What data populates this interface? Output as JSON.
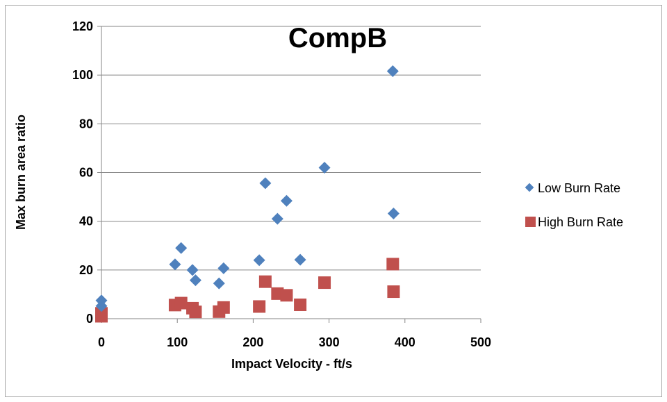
{
  "chart_data": {
    "type": "scatter",
    "title": "CompB",
    "xlabel": "Impact Velocity - ft/s",
    "ylabel": "Max burn area ratio",
    "xlim": [
      0,
      500
    ],
    "ylim": [
      0,
      120
    ],
    "xticks": [
      "0",
      "100",
      "200",
      "300",
      "400",
      "500"
    ],
    "yticks": [
      "0",
      "20",
      "40",
      "60",
      "80",
      "100",
      "120"
    ],
    "grid": true,
    "legend_position": "right",
    "series": [
      {
        "name": "Low Burn Rate",
        "color": "#4f81bd",
        "marker": "diamond",
        "points": [
          [
            0,
            7.5
          ],
          [
            0,
            5.2
          ],
          [
            97,
            22.3
          ],
          [
            105,
            29
          ],
          [
            120,
            20
          ],
          [
            124,
            15.8
          ],
          [
            155,
            14.5
          ],
          [
            161,
            20.7
          ],
          [
            208,
            24
          ],
          [
            216,
            55.6
          ],
          [
            232,
            41
          ],
          [
            244,
            48.4
          ],
          [
            262,
            24.2
          ],
          [
            294,
            62
          ],
          [
            384,
            101.6
          ],
          [
            385,
            43.2
          ]
        ]
      },
      {
        "name": "High Burn Rate",
        "color": "#c0504d",
        "marker": "square",
        "points": [
          [
            0,
            2.2
          ],
          [
            0,
            1.0
          ],
          [
            97,
            5.6
          ],
          [
            105,
            6.4
          ],
          [
            120,
            4.3
          ],
          [
            124,
            2.8
          ],
          [
            155,
            2.9
          ],
          [
            161,
            4.6
          ],
          [
            208,
            5.0
          ],
          [
            216,
            15.2
          ],
          [
            232,
            10.3
          ],
          [
            244,
            9.6
          ],
          [
            262,
            5.7
          ],
          [
            294,
            14.8
          ],
          [
            384,
            22.4
          ],
          [
            385,
            11.1
          ]
        ]
      }
    ]
  }
}
